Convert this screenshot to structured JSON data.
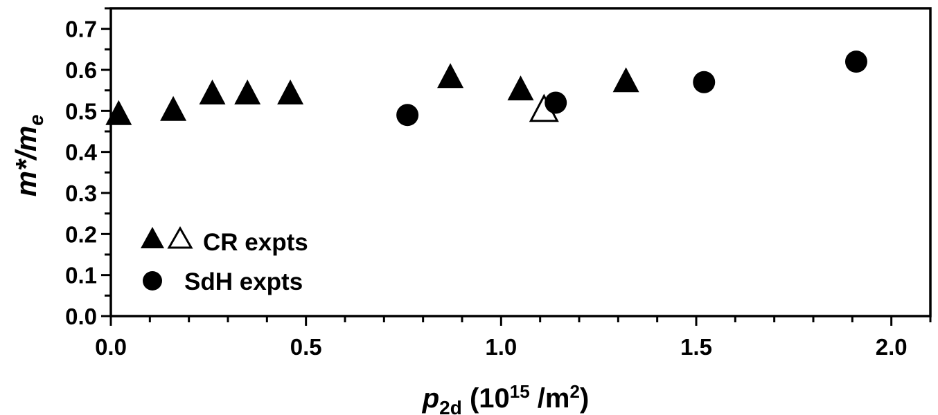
{
  "chart_data": {
    "type": "scatter",
    "xlim": [
      0.0,
      2.1
    ],
    "ylim": [
      0.0,
      0.75
    ],
    "x_ticks": [
      "0.0",
      "0.5",
      "1.0",
      "1.5",
      "2.0"
    ],
    "x_tick_values": [
      0.0,
      0.5,
      1.0,
      1.5,
      2.0
    ],
    "y_ticks": [
      "0.0",
      "0.1",
      "0.2",
      "0.3",
      "0.4",
      "0.5",
      "0.6",
      "0.7"
    ],
    "y_tick_values": [
      0.0,
      0.1,
      0.2,
      0.3,
      0.4,
      0.5,
      0.6,
      0.7
    ],
    "xlabel": {
      "main": "p",
      "sub": "2d",
      "paren_open": " (10",
      "sup": "15",
      "unit": " /m",
      "unit_sup": "2",
      "paren_close": ")"
    },
    "ylabel": {
      "main": "m*/m",
      "sub": "e"
    },
    "grid": false,
    "legend_position": "bottom-left",
    "series": [
      {
        "name": "CR expts",
        "marker": "triangle",
        "color": "#000000",
        "points": [
          {
            "x": 0.02,
            "y": 0.49
          },
          {
            "x": 0.16,
            "y": 0.5
          },
          {
            "x": 0.26,
            "y": 0.54
          },
          {
            "x": 0.35,
            "y": 0.54
          },
          {
            "x": 0.46,
            "y": 0.54
          },
          {
            "x": 0.87,
            "y": 0.58
          },
          {
            "x": 1.05,
            "y": 0.55
          },
          {
            "x": 1.32,
            "y": 0.57
          }
        ]
      },
      {
        "name": "CR expts (open)",
        "marker": "triangle-open",
        "color": "#000000",
        "points": [
          {
            "x": 1.11,
            "y": 0.5
          }
        ]
      },
      {
        "name": "SdH expts",
        "marker": "circle",
        "color": "#000000",
        "points": [
          {
            "x": 0.76,
            "y": 0.49
          },
          {
            "x": 1.14,
            "y": 0.52
          },
          {
            "x": 1.52,
            "y": 0.57
          },
          {
            "x": 1.91,
            "y": 0.62
          }
        ]
      }
    ],
    "legend": [
      {
        "label": "CR expts",
        "markers": [
          "triangle",
          "triangle-open"
        ]
      },
      {
        "label": "SdH expts",
        "markers": [
          "circle"
        ]
      }
    ]
  }
}
